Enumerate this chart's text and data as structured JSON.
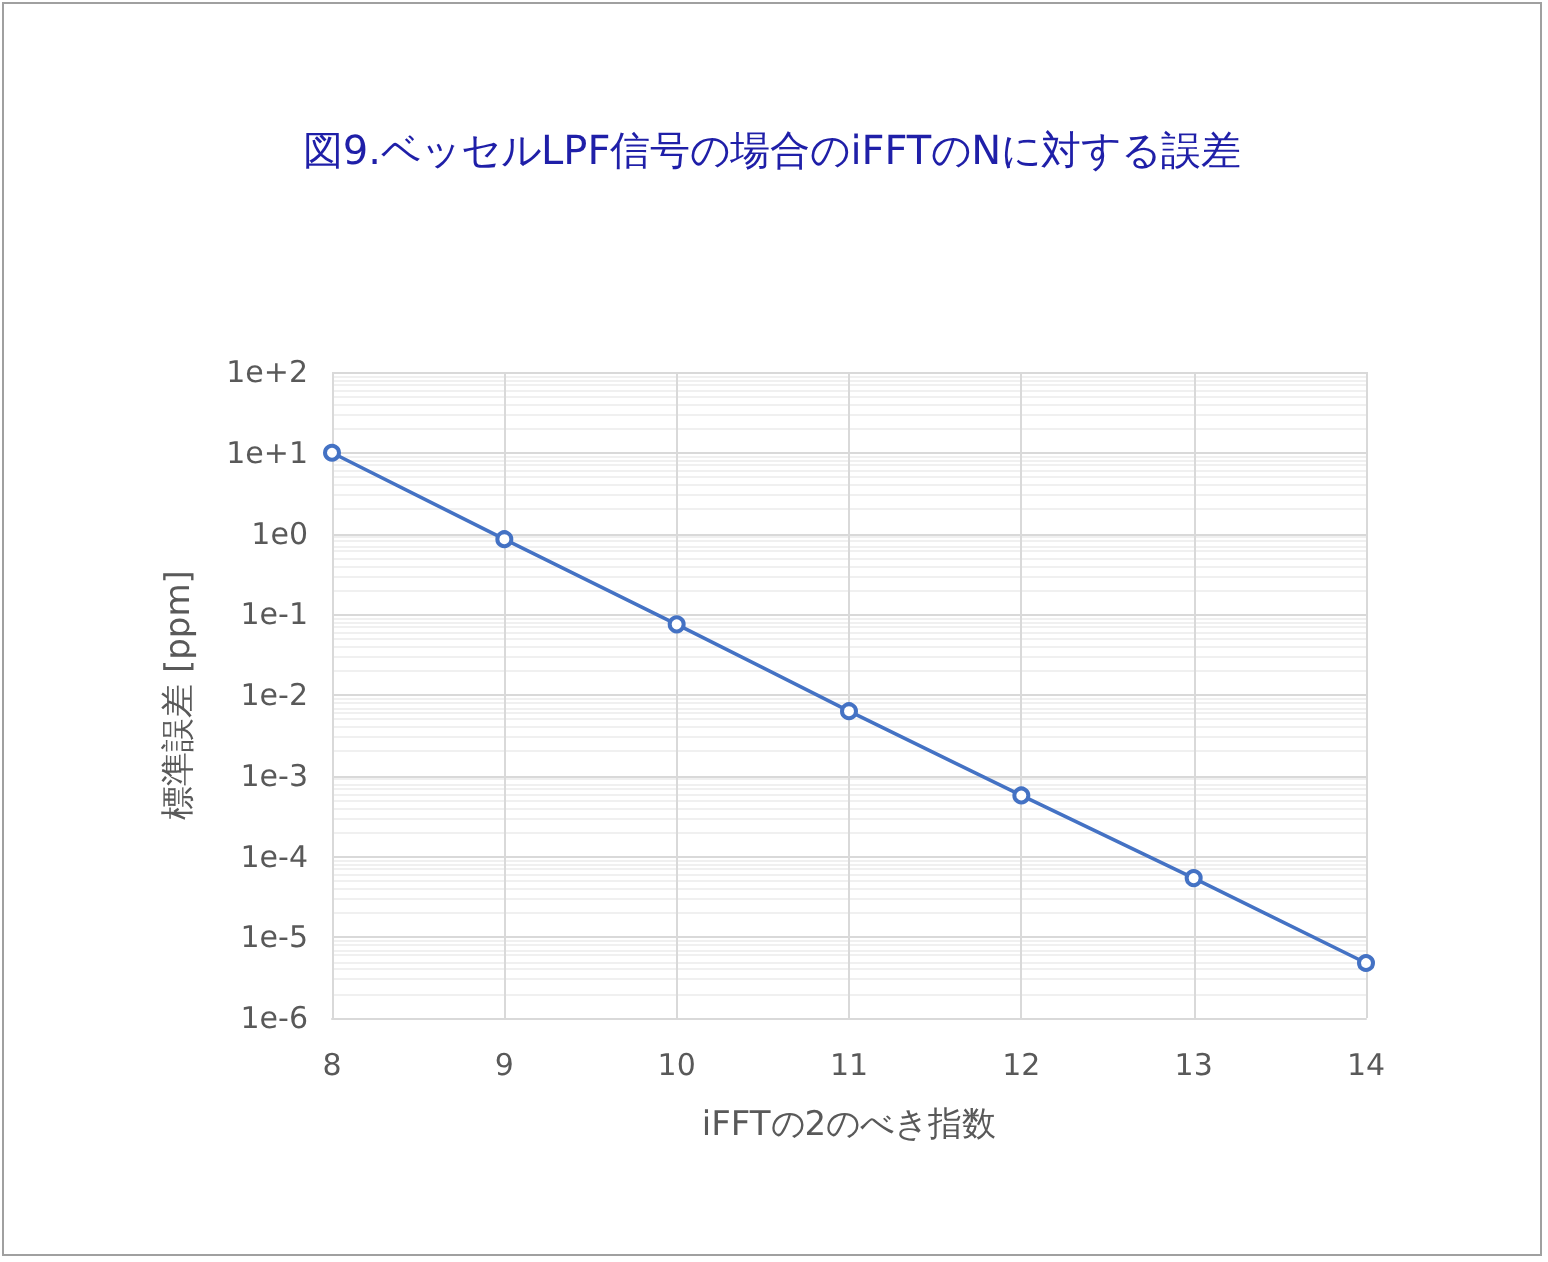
{
  "chart_data": {
    "type": "line",
    "title": "図9.ベッセルLPF信号の場合のiFFTのNに対する誤差",
    "xlabel": "iFFTの2のべき指数",
    "ylabel": "標準誤差 [ppm]",
    "x": [
      8,
      9,
      10,
      11,
      12,
      13,
      14
    ],
    "series": [
      {
        "color": "#4472c4",
        "values": [
          10,
          0.85,
          0.075,
          0.0063,
          0.00057,
          5.4e-05,
          4.8e-06
        ]
      }
    ],
    "xlim": [
      8,
      14
    ],
    "xticks": [
      8,
      9,
      10,
      11,
      12,
      13,
      14
    ],
    "ylim": [
      1e-06,
      100
    ],
    "yticks": [
      {
        "value": 1e-06,
        "label": "1e-6"
      },
      {
        "value": 1e-05,
        "label": "1e-5"
      },
      {
        "value": 0.0001,
        "label": "1e-4"
      },
      {
        "value": 0.001,
        "label": "1e-3"
      },
      {
        "value": 0.01,
        "label": "1e-2"
      },
      {
        "value": 0.1,
        "label": "1e-1"
      },
      {
        "value": 1,
        "label": "1e0"
      },
      {
        "value": 10,
        "label": "1e+1"
      },
      {
        "value": 100,
        "label": "1e+2"
      }
    ],
    "log": "y",
    "grid": true,
    "marker": "circle",
    "line_style": "solid"
  }
}
